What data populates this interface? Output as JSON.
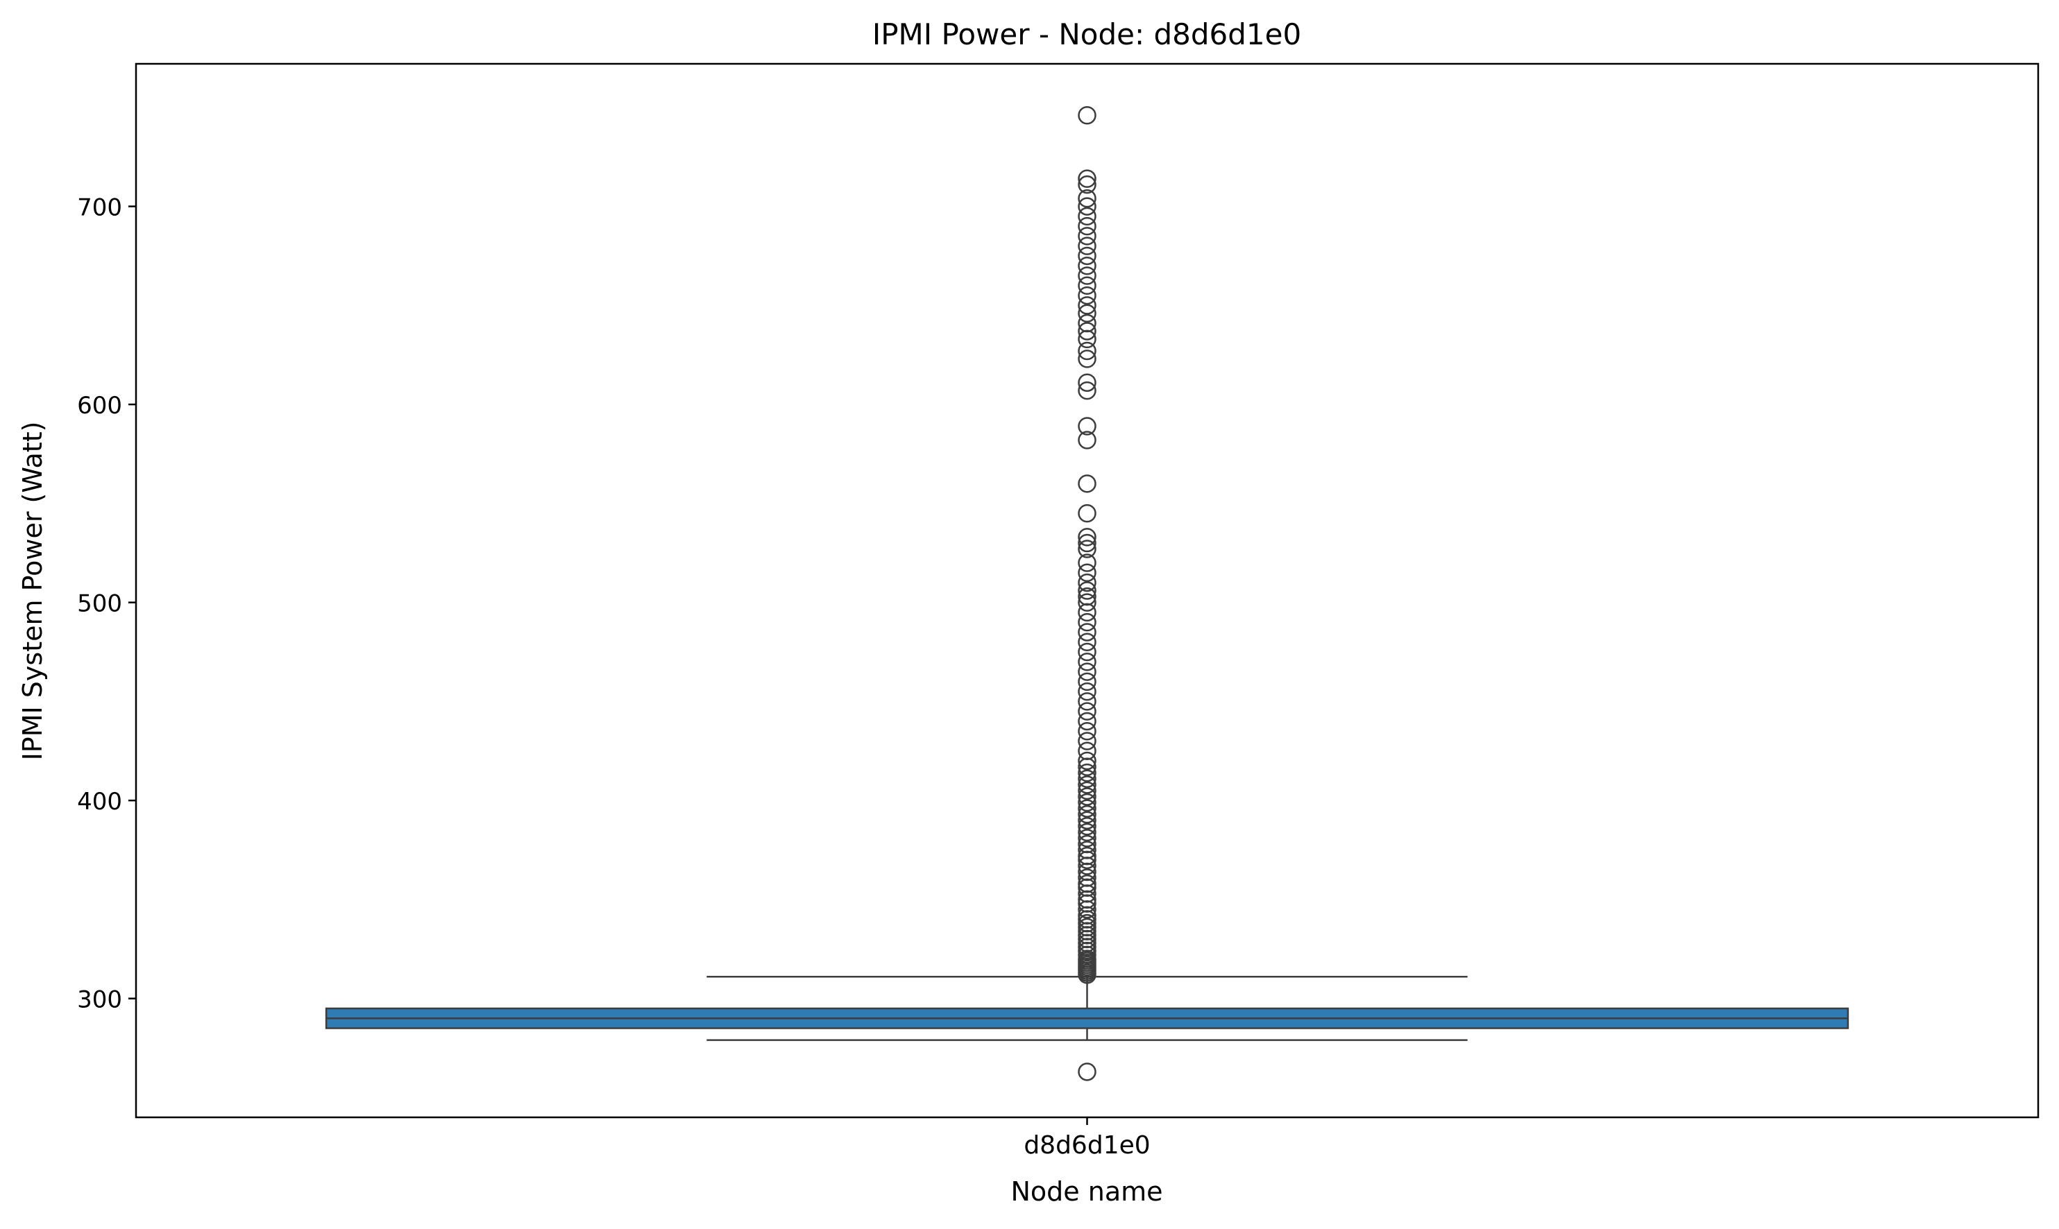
{
  "chart_data": {
    "type": "box",
    "title": "IPMI Power - Node: d8d6d1e0",
    "xlabel": "Node name",
    "ylabel": "IPMI System Power (Watt)",
    "categories": [
      "d8d6d1e0"
    ],
    "ylim": [
      240,
      772
    ],
    "yticks": [
      300,
      400,
      500,
      600,
      700
    ],
    "ytick_labels": [
      "300",
      "400",
      "500",
      "600",
      "700"
    ],
    "grid": false,
    "legend": "none",
    "box_color": "#2f7bb3",
    "series": [
      {
        "category": "d8d6d1e0",
        "whisker_low": 279,
        "q1": 285,
        "median": 290,
        "q3": 295,
        "whisker_high": 311,
        "outliers": [
          263,
          312,
          313,
          314,
          315,
          316,
          317,
          318,
          319,
          320,
          322,
          324,
          326,
          328,
          330,
          332,
          334,
          336,
          338,
          340,
          342,
          345,
          348,
          350,
          353,
          356,
          358,
          361,
          364,
          367,
          370,
          372,
          375,
          378,
          381,
          384,
          387,
          390,
          393,
          396,
          399,
          402,
          405,
          408,
          411,
          414,
          417,
          420,
          425,
          430,
          435,
          440,
          445,
          450,
          455,
          460,
          465,
          470,
          475,
          480,
          485,
          490,
          495,
          500,
          503,
          506,
          510,
          515,
          520,
          527,
          530,
          533,
          545,
          560,
          582,
          589,
          607,
          611,
          623,
          627,
          633,
          637,
          641,
          646,
          650,
          655,
          660,
          665,
          670,
          675,
          680,
          685,
          690,
          695,
          700,
          704,
          711,
          714,
          746
        ]
      }
    ]
  }
}
